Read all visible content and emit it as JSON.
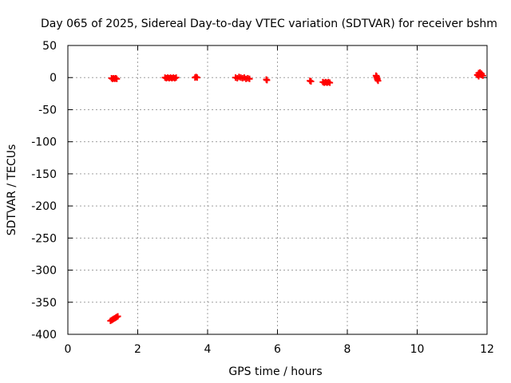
{
  "chart_data": {
    "type": "scatter",
    "title": "Day 065 of 2025, Sidereal Day-to-day VTEC variation (SDTVAR) for receiver bshm",
    "xlabel": "GPS time / hours",
    "ylabel": "SDTVAR / TECUs",
    "xlim": [
      0,
      12
    ],
    "ylim": [
      -400,
      50
    ],
    "xticks": [
      0,
      2,
      4,
      6,
      8,
      10,
      12
    ],
    "yticks": [
      50,
      0,
      -50,
      -100,
      -150,
      -200,
      -250,
      -300,
      -350,
      -400
    ],
    "grid": true,
    "marker": "plus",
    "color": "#ff0000",
    "series": [
      {
        "x": [
          1.25,
          1.28,
          1.31,
          1.34,
          1.37,
          1.4,
          1.22,
          1.25,
          1.28,
          1.31,
          1.34,
          1.37,
          1.4,
          1.43,
          2.78,
          2.82,
          2.86,
          2.9,
          2.94,
          2.98,
          3.02,
          3.06,
          3.1,
          3.64,
          3.67,
          3.7,
          4.8,
          4.85,
          4.9,
          4.95,
          5.0,
          5.05,
          5.1,
          5.15,
          5.2,
          5.68,
          5.7,
          6.93,
          6.96,
          7.3,
          7.34,
          7.38,
          7.42,
          7.46,
          7.5,
          8.82,
          8.84,
          8.86,
          8.88,
          8.84,
          8.86,
          11.72,
          11.76,
          11.8,
          11.84,
          11.88,
          11.76,
          11.8,
          11.84
        ],
        "y": [
          -1,
          -2,
          -1,
          -2,
          -1,
          -2,
          -379,
          -378,
          -377,
          -376,
          -375,
          -374,
          -373,
          -372,
          0,
          -1,
          0,
          -1,
          0,
          -1,
          0,
          -1,
          0,
          0,
          1,
          0,
          0,
          -1,
          1,
          0,
          -1,
          0,
          -2,
          -1,
          -2,
          -3,
          -4,
          -5,
          -6,
          -7,
          -8,
          -7,
          -8,
          -7,
          -8,
          3,
          0,
          -3,
          -5,
          2,
          -2,
          4,
          7,
          5,
          6,
          3,
          2,
          8,
          4
        ]
      }
    ]
  }
}
